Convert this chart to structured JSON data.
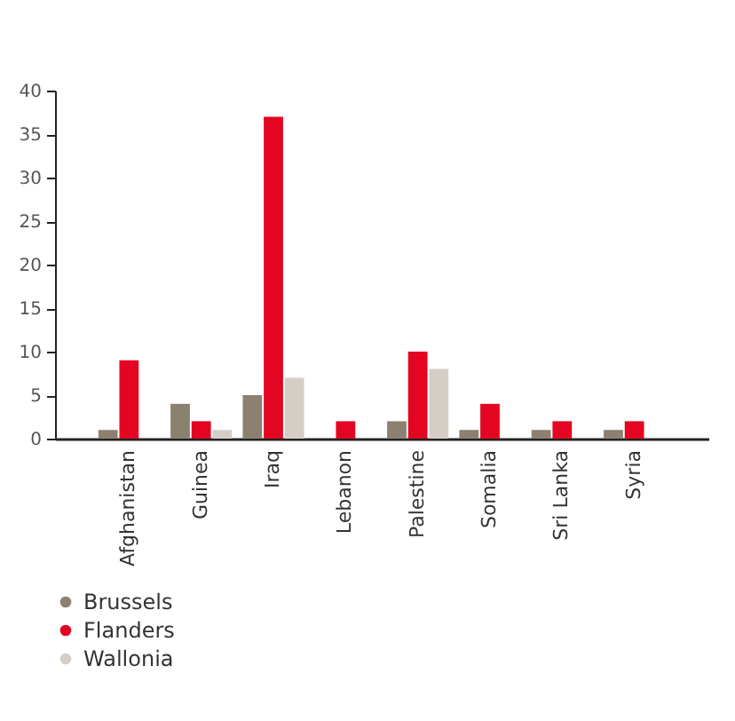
{
  "chart_data": {
    "type": "bar",
    "categories": [
      "Afghanistan",
      "Guinea",
      "Iraq",
      "Lebanon",
      "Palestine",
      "Somalia",
      "Sri Lanka",
      "Syria"
    ],
    "series": [
      {
        "name": "Brussels",
        "color": "#8c8070",
        "values": [
          1,
          4,
          5,
          0,
          2,
          1,
          1,
          1
        ]
      },
      {
        "name": "Flanders",
        "color": "#e30521",
        "values": [
          9,
          2,
          37,
          2,
          10,
          4,
          2,
          2
        ]
      },
      {
        "name": "Wallonia",
        "color": "#d5cec6",
        "values": [
          0,
          1,
          7,
          0,
          8,
          0,
          0,
          0
        ]
      }
    ],
    "ylim": [
      0,
      40
    ],
    "yticks": [
      0,
      5,
      10,
      15,
      20,
      25,
      30,
      35,
      40
    ],
    "grid": false,
    "legend": "bottom left"
  }
}
